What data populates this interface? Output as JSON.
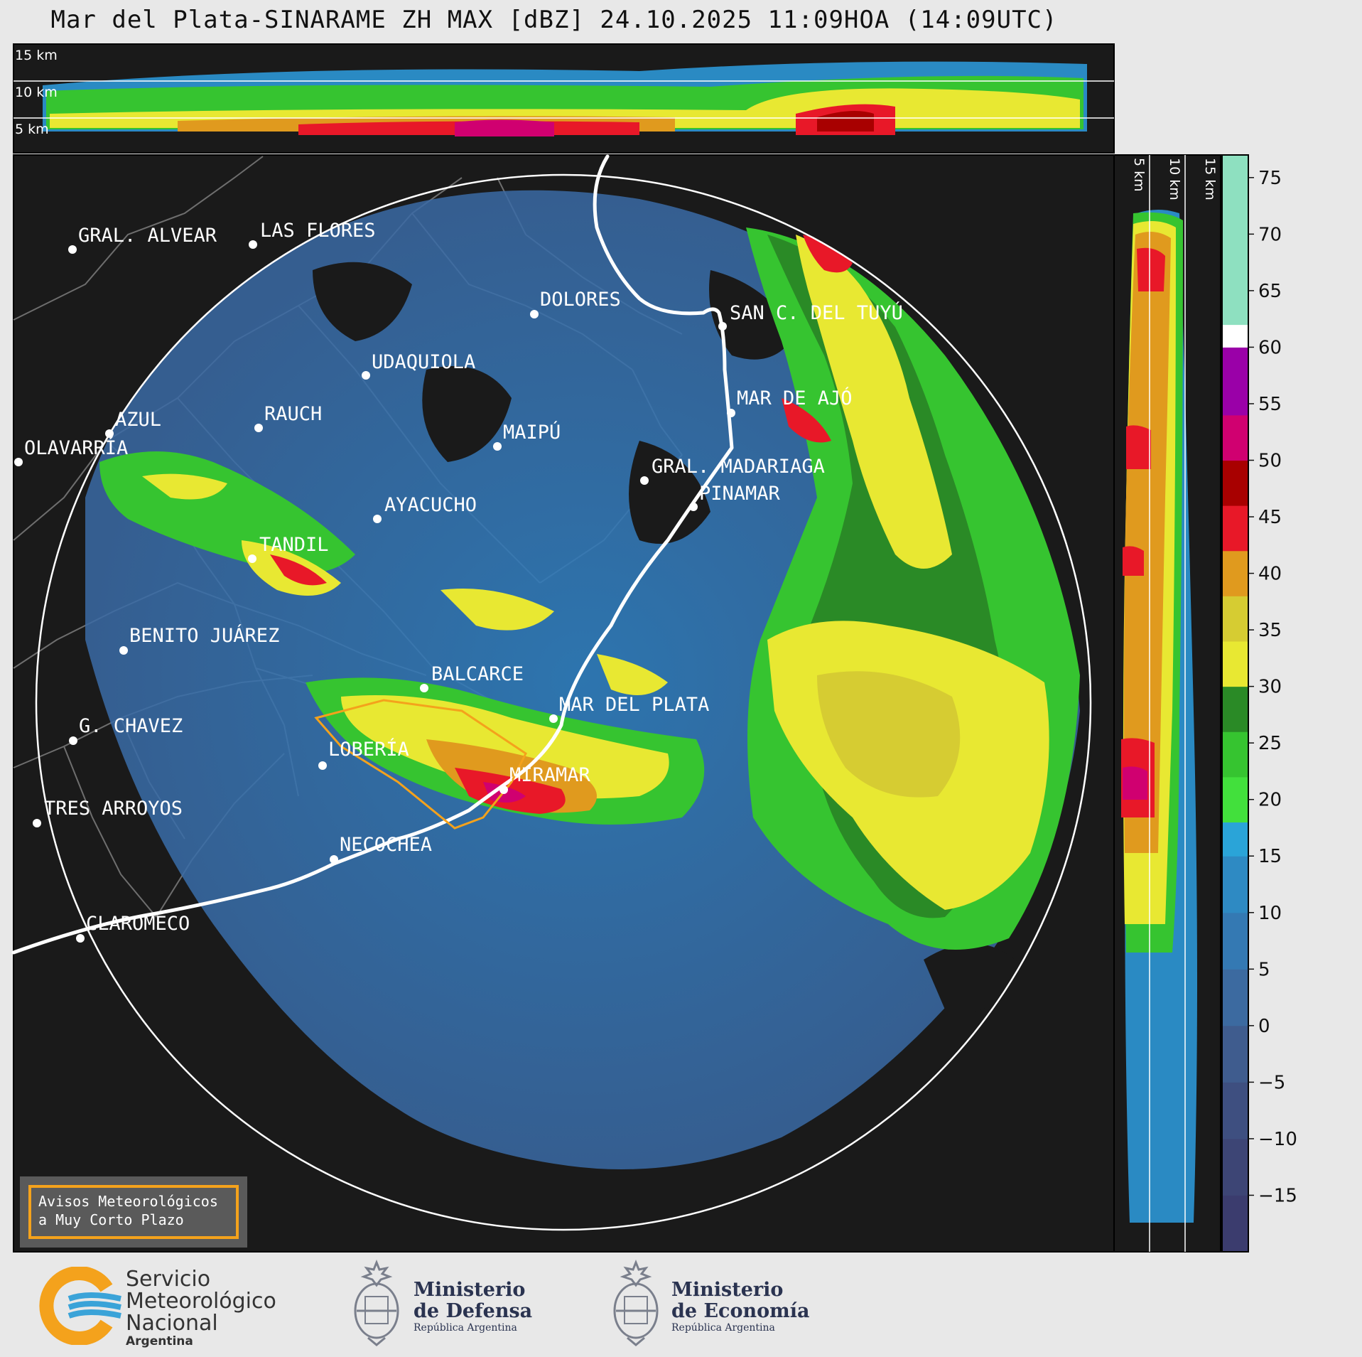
{
  "title": "Mar del Plata-SINARAME ZH MAX [dBZ] 24.10.2025 11:09HOA (14:09UTC)",
  "top_profile": {
    "height_labels": [
      "15 km",
      "10 km",
      "5 km"
    ]
  },
  "side_profile": {
    "height_labels": [
      "5 km",
      "10 km",
      "15 km"
    ]
  },
  "cities": [
    {
      "name": "GRAL. ALVEAR"
    },
    {
      "name": "LAS FLORES"
    },
    {
      "name": "DOLORES"
    },
    {
      "name": "SAN C. DEL TUYÚ"
    },
    {
      "name": "UDAQUIOLA"
    },
    {
      "name": "MAR DE AJÓ"
    },
    {
      "name": "AZUL"
    },
    {
      "name": "RAUCH"
    },
    {
      "name": "OLAVARRÍA"
    },
    {
      "name": "MAIPÚ"
    },
    {
      "name": "GRAL. MADARIAGA"
    },
    {
      "name": "PINAMAR"
    },
    {
      "name": "AYACUCHO"
    },
    {
      "name": "TANDIL"
    },
    {
      "name": "BENITO JUÁREZ"
    },
    {
      "name": "BALCARCE"
    },
    {
      "name": "MAR DEL PLATA"
    },
    {
      "name": "G. CHAVEZ"
    },
    {
      "name": "LOBERÍA"
    },
    {
      "name": "MIRAMAR"
    },
    {
      "name": "TRES ARROYOS"
    },
    {
      "name": "NECOCHEA"
    },
    {
      "name": "CLAROMECO"
    }
  ],
  "colorbar": {
    "unit": "dBZ",
    "min": -20,
    "max": 77,
    "ticks": [
      "75",
      "70",
      "65",
      "60",
      "55",
      "50",
      "45",
      "40",
      "35",
      "30",
      "25",
      "20",
      "15",
      "10",
      "5",
      "0",
      "−5",
      "−10",
      "−15"
    ],
    "stops": [
      {
        "from": -20,
        "to": -15,
        "color": "#3b3c6e"
      },
      {
        "from": -15,
        "to": -10,
        "color": "#3d4575"
      },
      {
        "from": -10,
        "to": -5,
        "color": "#3e4f80"
      },
      {
        "from": -5,
        "to": 0,
        "color": "#3f5c8e"
      },
      {
        "from": 0,
        "to": 5,
        "color": "#3c6aa0"
      },
      {
        "from": 5,
        "to": 10,
        "color": "#3479b3"
      },
      {
        "from": 10,
        "to": 15,
        "color": "#2e8ac3"
      },
      {
        "from": 15,
        "to": 18,
        "color": "#2aa4d8"
      },
      {
        "from": 18,
        "to": 22,
        "color": "#42e03c"
      },
      {
        "from": 22,
        "to": 26,
        "color": "#36c430"
      },
      {
        "from": 26,
        "to": 30,
        "color": "#2a8a26"
      },
      {
        "from": 30,
        "to": 34,
        "color": "#e8e832"
      },
      {
        "from": 34,
        "to": 38,
        "color": "#d6cc32"
      },
      {
        "from": 38,
        "to": 42,
        "color": "#e09a1e"
      },
      {
        "from": 42,
        "to": 46,
        "color": "#e81828"
      },
      {
        "from": 46,
        "to": 50,
        "color": "#a80000"
      },
      {
        "from": 50,
        "to": 54,
        "color": "#d00070"
      },
      {
        "from": 54,
        "to": 58,
        "color": "#9a00a8"
      },
      {
        "from": 58,
        "to": 60,
        "color": "#9a00a8"
      },
      {
        "from": 60,
        "to": 62,
        "color": "#ffffff"
      },
      {
        "from": 62,
        "to": 77,
        "color": "#8ee0c0"
      }
    ]
  },
  "warning_legend": {
    "line1": "Avisos Meteorológicos",
    "line2": "a Muy Corto Plazo",
    "color": "#f4a21c"
  },
  "logos": {
    "smn": {
      "line1": "Servicio",
      "line2": "Meteorológico",
      "line3": "Nacional",
      "sub": "Argentina"
    },
    "defensa": {
      "line1": "Ministerio",
      "line2": "de Defensa",
      "sub": "República Argentina"
    },
    "economia": {
      "line1": "Ministerio",
      "line2": "de Economía",
      "sub": "República Argentina"
    }
  }
}
